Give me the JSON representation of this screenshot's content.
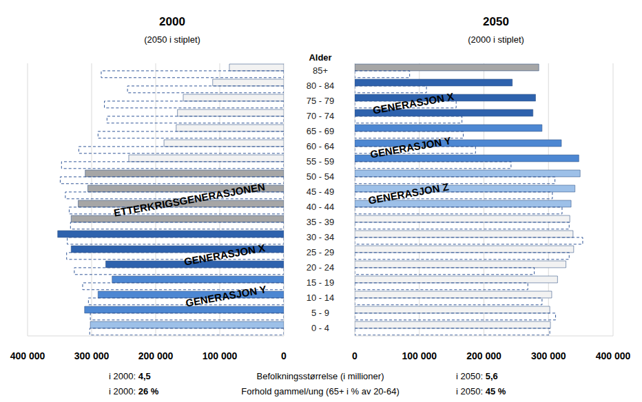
{
  "chart_data": [
    {
      "type": "bar",
      "orientation": "horizontal",
      "title": "2000",
      "subtitle": "(2050 i stiplet)",
      "categories": [
        "85+",
        "80 - 84",
        "75 - 79",
        "70 - 74",
        "65 - 69",
        "60 - 64",
        "55 - 59",
        "50 - 54",
        "45 - 49",
        "40 - 44",
        "35 - 39",
        "30 - 34",
        "25 - 29",
        "20 - 24",
        "15 - 19",
        "10 - 14",
        "5 - 9",
        "0 - 4"
      ],
      "series": [
        {
          "name": "2000",
          "values": [
            85000,
            111000,
            157000,
            166000,
            168000,
            187000,
            242000,
            310000,
            306000,
            321000,
            332000,
            353000,
            332000,
            278000,
            268000,
            290000,
            311000,
            302000
          ],
          "colors": [
            "#f2f2f2",
            "#f2f2f2",
            "#f2f2f2",
            "#f2f2f2",
            "#f2f2f2",
            "#f2f2f2",
            "#f2f2f2",
            "#a6a6a6",
            "#a6a6a6",
            "#a6a6a6",
            "#a6a6a6",
            "#2e62ad",
            "#2e62ad",
            "#2e62ad",
            "#4d87d2",
            "#4d87d2",
            "#4d87d2",
            "#9dc0e8"
          ]
        },
        {
          "name": "2050",
          "values": [
            285000,
            244000,
            280000,
            276000,
            290000,
            320000,
            347000,
            349000,
            341000,
            335000,
            333000,
            338000,
            339000,
            327000,
            314000,
            305000,
            302000,
            303000
          ],
          "color": "#2f5597",
          "line_style": "dashed"
        }
      ],
      "xlim": [
        0,
        400000
      ],
      "xticks": [
        {
          "value": 0,
          "label": "0"
        },
        {
          "value": 100000,
          "label": "100 000"
        },
        {
          "value": 200000,
          "label": "200 000"
        },
        {
          "value": 300000,
          "label": "300 000"
        },
        {
          "value": 400000,
          "label": "400 000"
        }
      ],
      "grid": true,
      "annotations": [
        "ETTERKRIGSGENERASJONEN",
        "GENERASJON X",
        "GENERASJON Y"
      ]
    },
    {
      "type": "bar",
      "orientation": "horizontal",
      "title": "2050",
      "subtitle": "(2000 i stiplet)",
      "categories": [
        "85+",
        "80 - 84",
        "75 - 79",
        "70 - 74",
        "65 - 69",
        "60 - 64",
        "55 - 59",
        "50 - 54",
        "45 - 49",
        "40 - 44",
        "35 - 39",
        "30 - 34",
        "25 - 29",
        "20 - 24",
        "15 - 19",
        "10 - 14",
        "5 - 9",
        "0 - 4"
      ],
      "series": [
        {
          "name": "2050",
          "values": [
            285000,
            244000,
            280000,
            276000,
            290000,
            320000,
            347000,
            349000,
            341000,
            335000,
            333000,
            338000,
            339000,
            327000,
            314000,
            305000,
            302000,
            303000
          ],
          "colors": [
            "#a6a6a6",
            "#2e62ad",
            "#2e62ad",
            "#2e62ad",
            "#4d87d2",
            "#4d87d2",
            "#4d87d2",
            "#9dc0e8",
            "#9dc0e8",
            "#9dc0e8",
            "#f2f2f2",
            "#f2f2f2",
            "#f2f2f2",
            "#f2f2f2",
            "#f2f2f2",
            "#f2f2f2",
            "#f2f2f2",
            "#f2f2f2"
          ]
        },
        {
          "name": "2000",
          "values": [
            85000,
            111000,
            157000,
            166000,
            168000,
            187000,
            242000,
            310000,
            306000,
            321000,
            332000,
            353000,
            332000,
            278000,
            268000,
            290000,
            311000,
            302000
          ],
          "color": "#2f5597",
          "line_style": "dashed"
        }
      ],
      "xlim": [
        0,
        400000
      ],
      "xticks": [
        {
          "value": 0,
          "label": "0"
        },
        {
          "value": 100000,
          "label": "100 000"
        },
        {
          "value": 200000,
          "label": "200 000"
        },
        {
          "value": 300000,
          "label": "300 000"
        },
        {
          "value": 400000,
          "label": "400 000"
        }
      ],
      "grid": true,
      "annotations": [
        "GENERASJON X",
        "GENERASJON Y",
        "GENERASJON Z"
      ]
    }
  ],
  "category_axis_label": "Alder",
  "footer": [
    {
      "label": "Befolkningsstørrelse (i millioner)",
      "left": "i 2000:",
      "left_value": "4,5",
      "right": "i 2050:",
      "right_value": "5,6"
    },
    {
      "label": "Forhold gammel/ung (65+ i % av 20-64)",
      "left": "i 2000:",
      "left_value": "26 %",
      "right": "i 2050:",
      "right_value": "45 %"
    }
  ]
}
